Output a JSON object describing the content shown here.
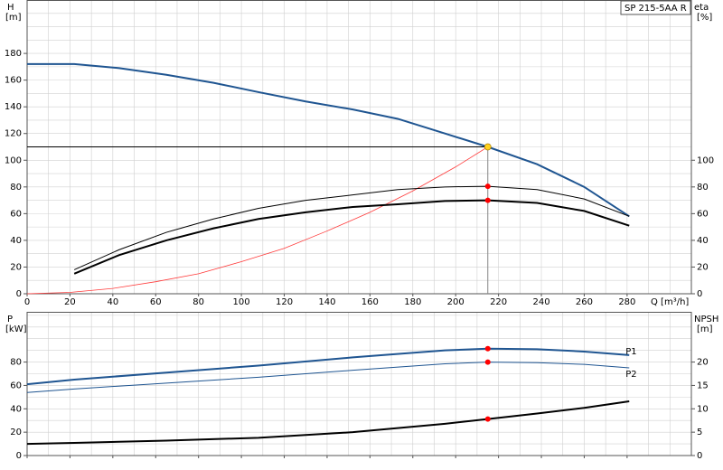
{
  "chart_data": [
    {
      "type": "line",
      "title": "SP 215-5AA R",
      "x_label": "Q [m³/h]",
      "y_label": "H",
      "y_unit": "[m]",
      "y2_label": "eta",
      "y2_unit": "[%]",
      "xlim": [
        0,
        310
      ],
      "xticks": [
        0,
        20,
        40,
        60,
        80,
        100,
        120,
        140,
        160,
        180,
        200,
        220,
        240,
        260,
        280
      ],
      "ylim": [
        0,
        220
      ],
      "yticks": [
        0,
        20,
        40,
        60,
        80,
        100,
        120,
        140,
        160,
        180
      ],
      "y2lim": [
        0,
        220
      ],
      "y2ticks": [
        0,
        20,
        40,
        60,
        80,
        100
      ],
      "grid": true,
      "series": [
        {
          "color": "#1f5591",
          "width": 2,
          "x": [
            0,
            22,
            43,
            65,
            87,
            108,
            130,
            152,
            173,
            195,
            215,
            238,
            260,
            281
          ],
          "values": [
            172,
            172,
            169,
            164,
            158,
            151,
            144,
            138,
            131,
            120,
            110,
            97,
            80,
            58
          ]
        },
        {
          "color": "#ff3b3b",
          "width": 0.8,
          "x": [
            0,
            20,
            40,
            60,
            80,
            100,
            120,
            140,
            160,
            180,
            200,
            215
          ],
          "values": [
            0,
            1,
            4,
            9,
            15,
            24,
            34,
            47,
            61,
            77,
            95,
            110
          ]
        },
        {
          "color": "#000000",
          "width": 1,
          "axis": "y2",
          "x": [
            22,
            43,
            65,
            87,
            108,
            130,
            152,
            173,
            195,
            215,
            238,
            260,
            281
          ],
          "values": [
            18,
            33,
            46,
            56,
            64,
            70,
            74,
            78,
            80,
            80.5,
            78,
            71,
            58
          ]
        },
        {
          "color": "#000000",
          "width": 2,
          "axis": "y2",
          "x": [
            22,
            43,
            65,
            87,
            108,
            130,
            152,
            173,
            195,
            215,
            238,
            260,
            281
          ],
          "values": [
            15,
            29,
            40,
            49,
            56,
            61,
            65,
            67,
            69.5,
            70,
            68,
            62,
            51
          ]
        }
      ],
      "duty_point": {
        "x": 215,
        "y": 110,
        "color": "#ffd21f"
      },
      "points": [
        {
          "x": 215,
          "y": 80.5,
          "axis": "y2",
          "color": "#ff0000"
        },
        {
          "x": 215,
          "y": 70,
          "axis": "y2",
          "color": "#ff0000"
        }
      ]
    },
    {
      "type": "line",
      "y_label": "P",
      "y_unit": "[kW]",
      "y2_label": "NPSH",
      "y2_unit": "[m]",
      "xlim": [
        0,
        310
      ],
      "xticks": [
        0,
        20,
        40,
        60,
        80,
        100,
        120,
        140,
        160,
        180,
        200,
        220,
        240,
        260,
        280
      ],
      "ylim": [
        0,
        123
      ],
      "yticks": [
        0,
        20,
        40,
        60,
        80
      ],
      "y2lim": [
        0,
        30.75
      ],
      "y2ticks": [
        0,
        5,
        10,
        15,
        20
      ],
      "grid": true,
      "series": [
        {
          "name": "P1",
          "color": "#1f5591",
          "width": 2,
          "x": [
            0,
            22,
            65,
            108,
            152,
            195,
            215,
            238,
            260,
            281
          ],
          "values": [
            61,
            65,
            71,
            77,
            84,
            90,
            91.5,
            91,
            89,
            86
          ]
        },
        {
          "name": "P2",
          "color": "#1f5591",
          "width": 1,
          "x": [
            0,
            22,
            65,
            108,
            152,
            195,
            215,
            238,
            260,
            281
          ],
          "values": [
            54,
            57,
            62,
            67,
            73,
            78.5,
            80,
            79.5,
            78,
            75
          ]
        },
        {
          "color": "#000000",
          "width": 2,
          "axis": "y2",
          "x": [
            0,
            22,
            65,
            108,
            152,
            195,
            215,
            238,
            260,
            281
          ],
          "values": [
            2.5,
            2.7,
            3.2,
            3.8,
            5,
            6.8,
            7.8,
            9,
            10.2,
            11.6
          ]
        }
      ],
      "points": [
        {
          "x": 215,
          "y": 91.5,
          "color": "#ff0000"
        },
        {
          "x": 215,
          "y": 80,
          "color": "#ff0000"
        },
        {
          "x": 215,
          "y": 7.8,
          "axis": "y2",
          "color": "#ff0000"
        }
      ]
    }
  ]
}
